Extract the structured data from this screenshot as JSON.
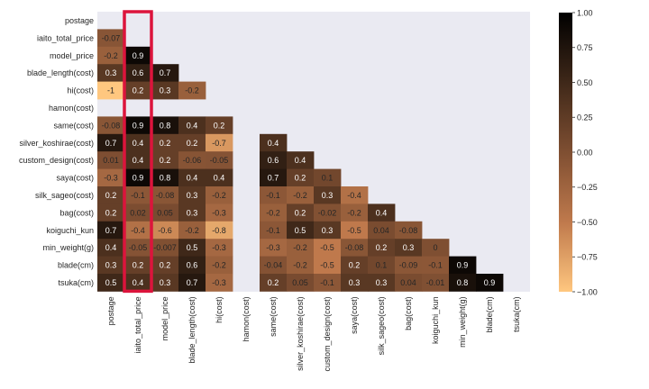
{
  "chart_data": {
    "type": "heatmap",
    "title": "",
    "xlabel": "",
    "ylabel": "",
    "mask": "upper-triangle-including-diagonal",
    "value_range": [
      -1.0,
      1.0
    ],
    "colormap": "copper",
    "colors": {
      "low": "#ffc77f",
      "mid": "#7f4f32",
      "high": "#000000",
      "masked": "#eaeaf2",
      "highlight": "#dc143c"
    },
    "highlight_column": "iaito_total_price",
    "row_labels": [
      "postage",
      "iaito_total_price",
      "model_price",
      "blade_length(cost)",
      "hi(cost)",
      "hamon(cost)",
      "same(cost)",
      "silver_koshirae(cost)",
      "custom_design(cost)",
      "saya(cost)",
      "silk_sageo(cost)",
      "bag(cost)",
      "koiguchi_kun",
      "min_weight(g)",
      "blade(cm)",
      "tsuka(cm)"
    ],
    "col_labels": [
      "postage",
      "iaito_total_price",
      "model_price",
      "blade_length(cost)",
      "hi(cost)",
      "hamon(cost)",
      "same(cost)",
      "silver_koshirae(cost)",
      "custom_design(cost)",
      "saya(cost)",
      "silk_sageo(cost)",
      "bag(cost)",
      "koiguchi_kun",
      "min_weight(g)",
      "blade(cm)",
      "tsuka(cm)"
    ],
    "values": [
      [],
      [
        -0.07
      ],
      [
        -0.2,
        0.9
      ],
      [
        0.3,
        0.6,
        0.7
      ],
      [
        -1,
        0.2,
        0.3,
        -0.2
      ],
      [
        null,
        null,
        null,
        null,
        null
      ],
      [
        -0.08,
        0.9,
        0.8,
        0.4,
        0.2,
        null
      ],
      [
        0.7,
        0.4,
        0.2,
        0.2,
        -0.7,
        null,
        0.4
      ],
      [
        0.01,
        0.4,
        0.2,
        -0.06,
        -0.05,
        null,
        0.6,
        0.4
      ],
      [
        -0.3,
        0.9,
        0.8,
        0.4,
        0.4,
        null,
        0.7,
        0.2,
        0.1
      ],
      [
        0.2,
        -0.1,
        -0.08,
        0.3,
        -0.2,
        null,
        -0.1,
        -0.2,
        0.3,
        -0.4
      ],
      [
        0.2,
        0.02,
        0.05,
        0.3,
        -0.3,
        null,
        -0.2,
        0.2,
        -0.02,
        -0.2,
        0.4
      ],
      [
        0.7,
        -0.4,
        -0.6,
        -0.2,
        -0.8,
        null,
        -0.1,
        0.5,
        0.3,
        -0.5,
        0.04,
        -0.08
      ],
      [
        0.4,
        -0.05,
        -0.007,
        0.5,
        -0.3,
        null,
        -0.3,
        -0.2,
        -0.5,
        -0.08,
        0.2,
        0.3,
        0
      ],
      [
        0.3,
        0.2,
        0.2,
        0.6,
        -0.2,
        null,
        -0.04,
        -0.2,
        -0.5,
        0.2,
        0.1,
        -0.09,
        -0.1,
        0.9
      ],
      [
        0.5,
        0.4,
        0.3,
        0.7,
        -0.3,
        null,
        0.2,
        0.05,
        -0.1,
        0.3,
        0.3,
        0.04,
        -0.01,
        0.8,
        0.9
      ]
    ],
    "colorbar": {
      "ticks": [
        1.0,
        0.75,
        0.5,
        0.25,
        0.0,
        -0.25,
        -0.5,
        -0.75,
        -1.0
      ],
      "tick_labels": [
        "1.00",
        "0.75",
        "0.50",
        "0.25",
        "0.00",
        "−0.25",
        "−0.50",
        "−0.75",
        "−1.00"
      ]
    }
  }
}
